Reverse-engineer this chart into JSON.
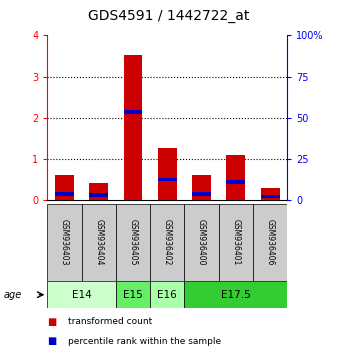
{
  "title": "GDS4591 / 1442722_at",
  "samples": [
    "GSM936403",
    "GSM936404",
    "GSM936405",
    "GSM936402",
    "GSM936400",
    "GSM936401",
    "GSM936406"
  ],
  "red_values": [
    0.6,
    0.42,
    3.52,
    1.26,
    0.6,
    1.1,
    0.28
  ],
  "blue_bottoms": [
    0.1,
    0.08,
    2.1,
    0.45,
    0.1,
    0.4,
    0.05
  ],
  "blue_heights": [
    0.1,
    0.08,
    0.08,
    0.08,
    0.09,
    0.09,
    0.06
  ],
  "ylim": [
    0,
    4
  ],
  "yticks_left": [
    0,
    1,
    2,
    3,
    4
  ],
  "yticks_right": [
    0,
    25,
    50,
    75,
    100
  ],
  "bar_width": 0.55,
  "red_color": "#cc0000",
  "blue_color": "#0000cc",
  "title_fontsize": 10,
  "tick_fontsize": 7,
  "sample_area_color": "#cccccc",
  "age_group_data": [
    {
      "label": "E14",
      "start": 0,
      "end": 1,
      "color": "#ccffcc"
    },
    {
      "label": "E15",
      "start": 2,
      "end": 2,
      "color": "#66ee66"
    },
    {
      "label": "E16",
      "start": 3,
      "end": 3,
      "color": "#aaffaa"
    },
    {
      "label": "E17.5",
      "start": 4,
      "end": 6,
      "color": "#33cc33"
    }
  ]
}
